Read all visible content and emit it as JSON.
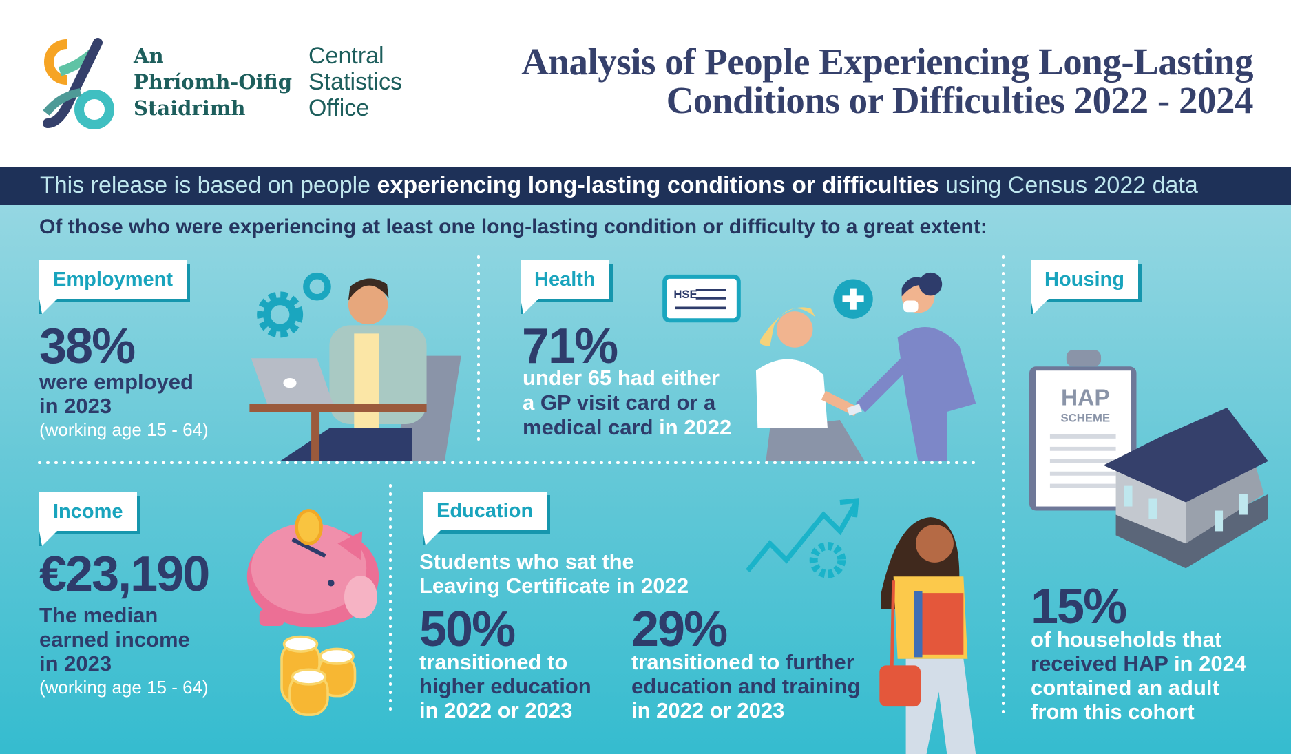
{
  "logo": {
    "irish": [
      "An",
      "Phríomh-Oifig",
      "Staidrimh"
    ],
    "english": [
      "Central",
      "Statistics",
      "Office"
    ]
  },
  "title": {
    "line1": "Analysis of People Experiencing Long-Lasting",
    "line2": "Conditions or Difficulties 2022 - 2024"
  },
  "band": {
    "pre": "This release is based on people ",
    "bold": "experiencing long-lasting conditions or difficulties",
    "post": " using Census 2022 data"
  },
  "lead": "Of those who were experiencing at least one long-lasting condition or difficulty to a great extent:",
  "employment": {
    "tag": "Employment",
    "stat": "38%",
    "l1": "were employed",
    "l2": "in 2023",
    "note": "(working age 15 - 64)"
  },
  "health": {
    "tag": "Health",
    "stat": "71%",
    "l1": "under 65 had either",
    "l2a": "a ",
    "l2b": "GP visit card or a",
    "l3a": "medical card",
    "l3b": " in 2022",
    "card_text": "HSE"
  },
  "housing": {
    "tag": "Housing",
    "clipboard_title": "HAP",
    "clipboard_sub": "SCHEME",
    "stat": "15%",
    "l1": "of households that",
    "l2a": "received HAP",
    "l2b": " in 2024",
    "l3": "contained an adult",
    "l4": "from this cohort"
  },
  "income": {
    "tag": "Income",
    "stat": "€23,190",
    "l1": "The median",
    "l2": "earned income",
    "l3": "in 2023",
    "note": "(working age 15 - 64)"
  },
  "education": {
    "tag": "Education",
    "intro1": "Students who sat the",
    "intro2": "Leaving Certificate in 2022",
    "a": {
      "stat": "50%",
      "l1": "transitioned to",
      "l2": "higher education",
      "l3": "in 2022 or 2023"
    },
    "b": {
      "stat": "29%",
      "l1a": "transitioned to ",
      "l1b": "further",
      "l2": "education and training",
      "l3": "in 2022 or 2023"
    }
  },
  "colors": {
    "navy": "#1e3158",
    "teal": "#19a4bd",
    "text": "#2e3c6b"
  }
}
